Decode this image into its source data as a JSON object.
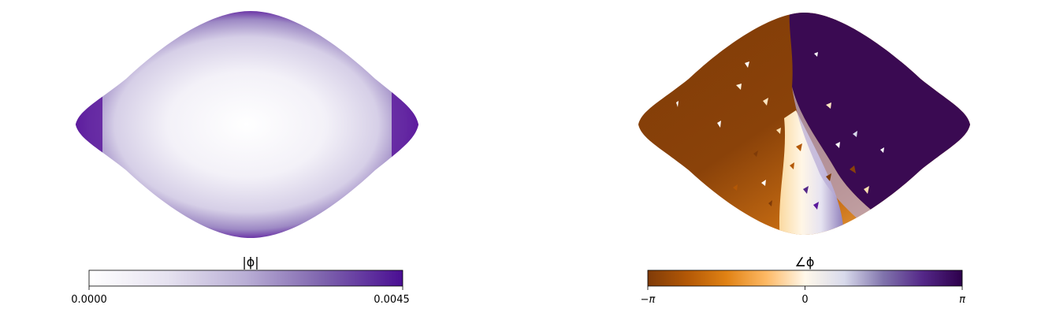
{
  "chart_data": [
    {
      "type": "heatmap",
      "projection": "mollweide-like sky map (lens shape)",
      "colormap": "Purples",
      "colorbar": {
        "label": "|ϕ|",
        "range": [
          0.0,
          0.0045
        ],
        "ticks": [
          "0.0000",
          "0.0045"
        ],
        "colors": [
          "#ffffff",
          "#e6e2f0",
          "#b9aed5",
          "#7d62ad",
          "#4a0e93"
        ]
      },
      "pattern": "near-zero magnitude over the map center, rising toward the left and right tips (max at the extremes)"
    },
    {
      "type": "heatmap",
      "projection": "mollweide-like sky map (lens shape)",
      "colormap": "PuOr",
      "colorbar": {
        "label": "∠ϕ",
        "range": [
          "-π",
          "π"
        ],
        "ticks": [
          "−π",
          "0",
          "π"
        ],
        "colors": [
          "#7f3b08",
          "#b35806",
          "#e08214",
          "#fdb863",
          "#fff8ea",
          "#d8daeb",
          "#8073ac",
          "#542788",
          "#2d004b"
        ]
      },
      "pattern": "brown (-π) over the left half, dark purple (π) over the upper right, with a near-zero white band running down the middle toward the bottom"
    }
  ]
}
